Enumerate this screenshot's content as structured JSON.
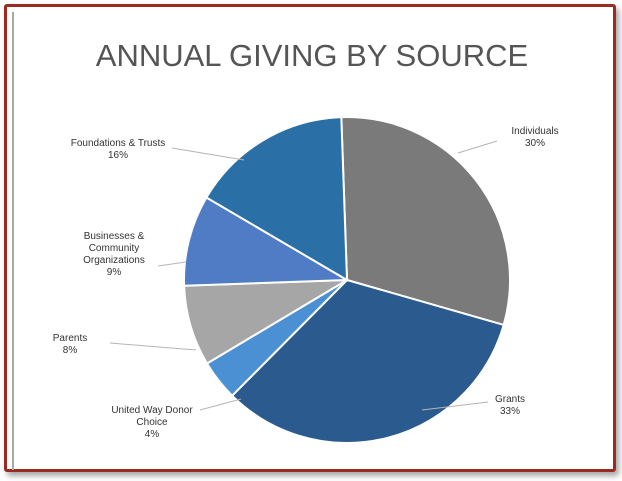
{
  "chart_data": {
    "type": "pie",
    "title": "ANNUAL GIVING BY SOURCE",
    "slices": [
      {
        "label": [
          "Individuals"
        ],
        "pct_text": "30%",
        "value": 30,
        "color": "#7a7a7a"
      },
      {
        "label": [
          "Grants"
        ],
        "pct_text": "33%",
        "value": 33,
        "color": "#2b5a8e"
      },
      {
        "label": [
          "United Way Donor",
          "Choice"
        ],
        "pct_text": "4%",
        "value": 4,
        "color": "#4a90d2"
      },
      {
        "label": [
          "Parents"
        ],
        "pct_text": "8%",
        "value": 8,
        "color": "#a6a6a6"
      },
      {
        "label": [
          "Businesses &",
          "Community",
          "Organizations"
        ],
        "pct_text": "9%",
        "value": 9,
        "color": "#4f7cc4"
      },
      {
        "label": [
          "Foundations & Trusts"
        ],
        "pct_text": "16%",
        "value": 16,
        "color": "#2a6fa5"
      }
    ]
  }
}
